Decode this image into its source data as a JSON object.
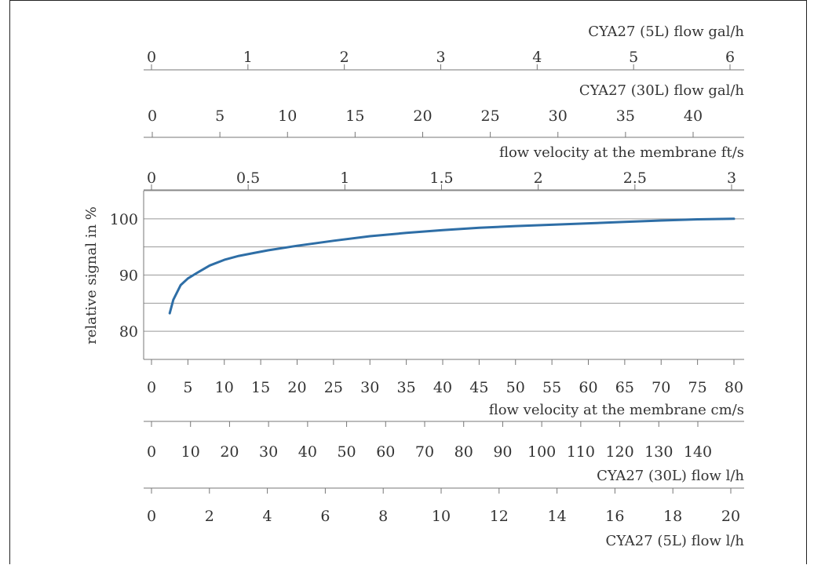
{
  "chart_data": {
    "type": "line",
    "ylabel": "relative signal in %",
    "ylim": [
      75,
      105
    ],
    "yticks": [
      80,
      90,
      100
    ],
    "grid": "horizontal",
    "line_color": "#2e6ea6",
    "primary_x_axis": {
      "label": "flow velocity at the membrane cm/s",
      "range": [
        0,
        80
      ],
      "ticks": [
        0,
        5,
        10,
        15,
        20,
        25,
        30,
        35,
        40,
        45,
        50,
        55,
        60,
        65,
        70,
        75,
        80
      ]
    },
    "secondary_axes": [
      {
        "id": "gal5",
        "label": "CYA27 (5L) flow gal/h",
        "position": "top",
        "ticks": [
          "0",
          "1",
          "2",
          "3",
          "4",
          "5",
          "6"
        ]
      },
      {
        "id": "gal30",
        "label": "CYA27 (30L) flow gal/h",
        "position": "top",
        "ticks": [
          "0",
          "5",
          "10",
          "15",
          "20",
          "25",
          "30",
          "35",
          "40"
        ]
      },
      {
        "id": "fts",
        "label": "flow velocity at the membrane ft/s",
        "position": "top",
        "ticks": [
          "0",
          "0.5",
          "1",
          "1.5",
          "2",
          "2.5",
          "3"
        ]
      },
      {
        "id": "l30",
        "label": "CYA27 (30L) flow l/h",
        "position": "bottom",
        "ticks": [
          "0",
          "10",
          "20",
          "30",
          "40",
          "50",
          "60",
          "70",
          "80",
          "90",
          "100",
          "110",
          "120",
          "130",
          "140"
        ]
      },
      {
        "id": "l5",
        "label": "CYA27 (5L) flow l/h",
        "position": "bottom",
        "ticks": [
          "0",
          "2",
          "4",
          "6",
          "8",
          "10",
          "12",
          "14",
          "16",
          "18",
          "20"
        ]
      }
    ],
    "series": [
      {
        "x": [
          2.5,
          3,
          4,
          5,
          6,
          8,
          10,
          12,
          14,
          16,
          20,
          25,
          30,
          35,
          40,
          45,
          50,
          55,
          60,
          65,
          70,
          75,
          80
        ],
        "values": [
          83.2,
          85.6,
          88.2,
          89.4,
          90.2,
          91.7,
          92.7,
          93.4,
          93.9,
          94.4,
          95.2,
          96.1,
          96.9,
          97.5,
          98.0,
          98.4,
          98.7,
          98.95,
          99.2,
          99.45,
          99.7,
          99.9,
          100.0
        ]
      }
    ]
  }
}
